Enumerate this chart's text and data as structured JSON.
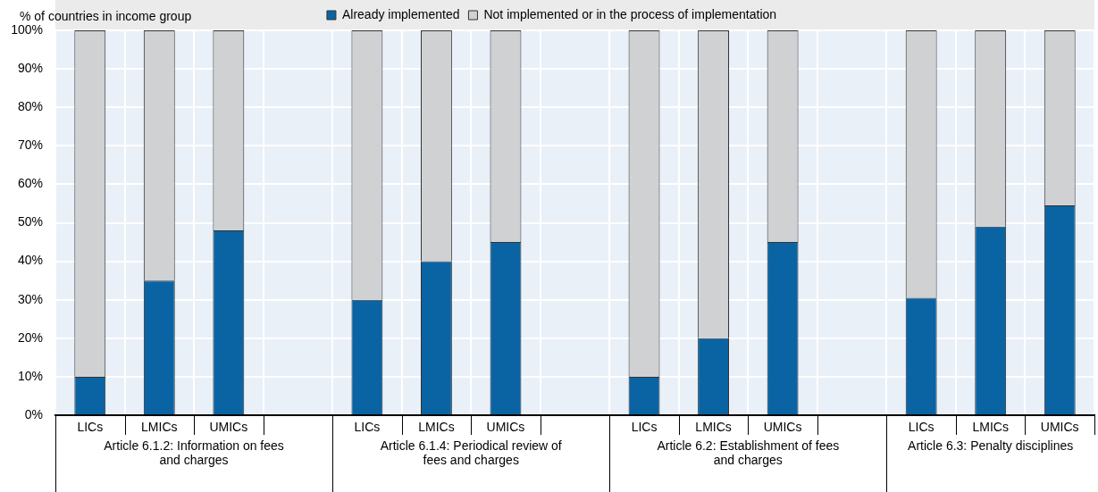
{
  "chart_data": {
    "type": "bar",
    "stacked": true,
    "ylabel": "% of countries in income group",
    "categories": [
      "LICs",
      "LMICs",
      "UMICs",
      null,
      "LICs",
      "LMICs",
      "UMICs",
      null,
      "LICs",
      "LMICs",
      "UMICs",
      null,
      "LICs",
      "LMICs",
      "UMICs"
    ],
    "series": [
      {
        "name": "Already implemented",
        "color": "#0a64a4",
        "values": [
          10,
          35,
          48,
          null,
          30,
          40,
          45,
          null,
          10,
          20,
          45,
          null,
          30.5,
          49,
          54.5
        ]
      },
      {
        "name": "Not implemented or in the process of implementation",
        "color": "#d0d1d3",
        "values": [
          90,
          65,
          52,
          null,
          70,
          60,
          55,
          null,
          90,
          80,
          55,
          null,
          69.5,
          51,
          45.5
        ]
      }
    ],
    "ylim": [
      0,
      100
    ],
    "yticks": [
      {
        "value": 0,
        "label": "0%"
      },
      {
        "value": 10,
        "label": "10%"
      },
      {
        "value": 20,
        "label": "20%"
      },
      {
        "value": 30,
        "label": "30%"
      },
      {
        "value": 40,
        "label": "40%"
      },
      {
        "value": 50,
        "label": "50%"
      },
      {
        "value": 60,
        "label": "60%"
      },
      {
        "value": 70,
        "label": "70%"
      },
      {
        "value": 80,
        "label": "80%"
      },
      {
        "value": 90,
        "label": "90%"
      },
      {
        "value": 100,
        "label": "100%"
      }
    ],
    "grid": true,
    "legend": "top",
    "annotations": [
      "Article 6.1.2: Information on fees and charges",
      "Article 6.1.4: Periodical review of fees and charges",
      "Article 6.2: Establishment of fees and charges",
      "Article 6.3: Penalty disciplines"
    ]
  }
}
